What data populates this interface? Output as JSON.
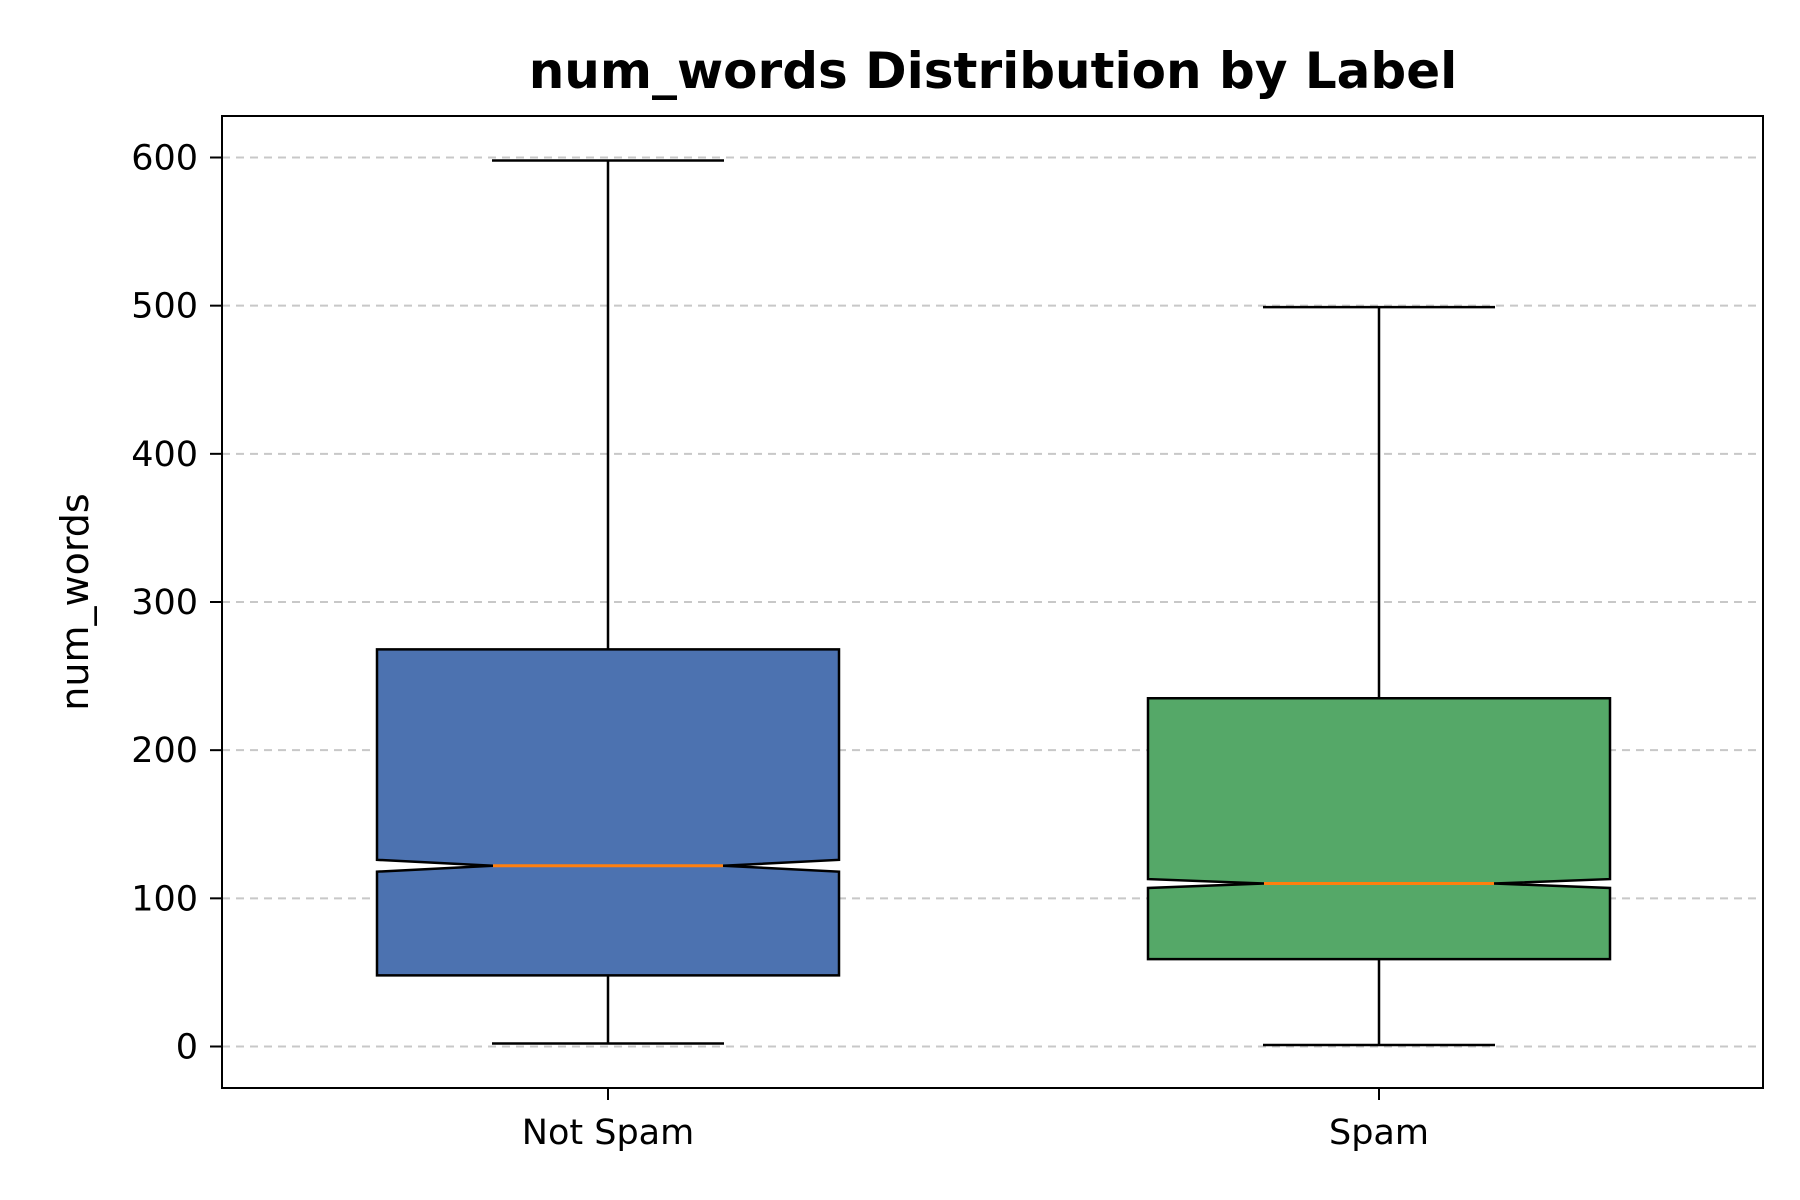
{
  "chart_data": {
    "type": "box",
    "title": "num_words Distribution by Label",
    "xlabel": "",
    "ylabel": "num_words",
    "ylim": [
      -28,
      628
    ],
    "yticks": [
      0,
      100,
      200,
      300,
      400,
      500,
      600
    ],
    "grid": "y-dashed",
    "notched": true,
    "categories": [
      "Not Spam",
      "Spam"
    ],
    "series": [
      {
        "name": "Not Spam",
        "whisker_low": 2,
        "q1": 48,
        "median": 122,
        "q3": 268,
        "whisker_high": 598,
        "notch_low": 118,
        "notch_high": 126,
        "color": "#4c72b0"
      },
      {
        "name": "Spam",
        "whisker_low": 1,
        "q1": 59,
        "median": 110,
        "q3": 235,
        "whisker_high": 499,
        "notch_low": 107,
        "notch_high": 113,
        "color": "#55a868"
      }
    ],
    "median_color": "#ff7f0e"
  }
}
